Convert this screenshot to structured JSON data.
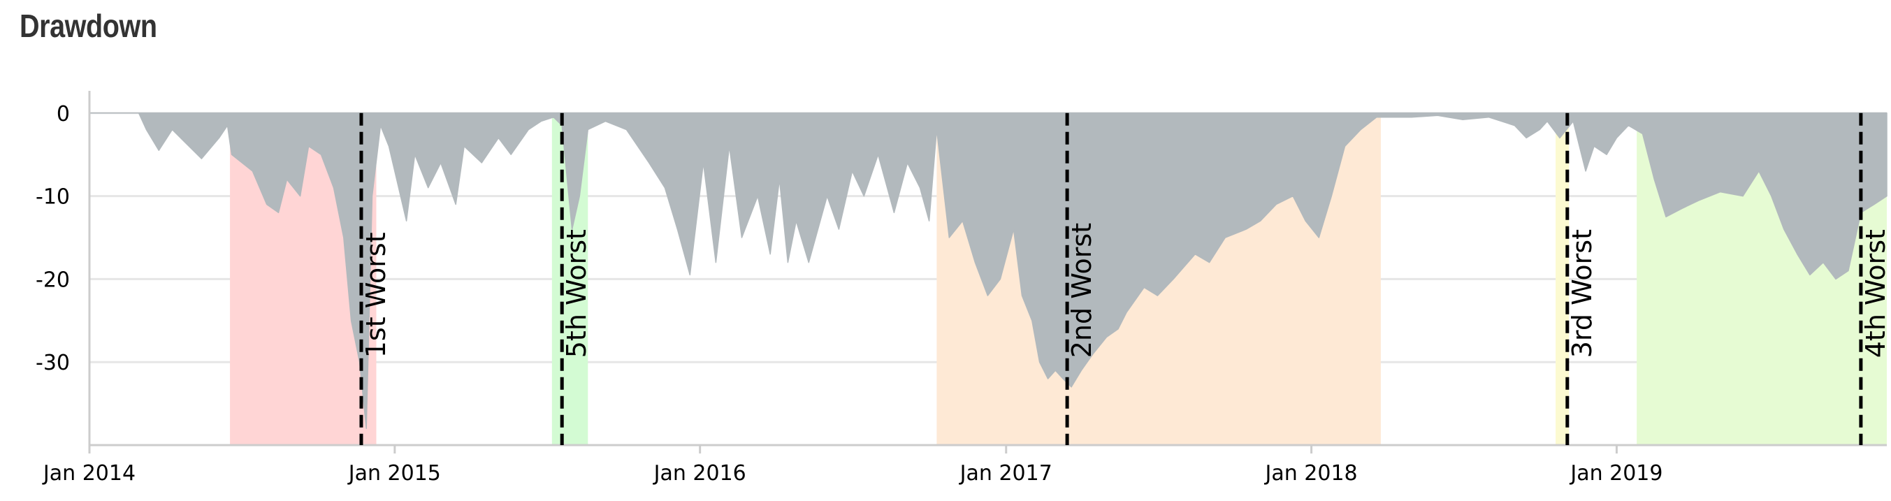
{
  "page": {
    "title": "Drawdown"
  },
  "chart_data": {
    "type": "area",
    "title": "Drawdown",
    "xlabel": "",
    "ylabel": "",
    "x_range": [
      "2014-01-01",
      "2019-11-20"
    ],
    "ylim": [
      -40,
      2
    ],
    "grid": {
      "y": true,
      "x": false
    },
    "y_ticks": [
      0,
      -10,
      -20,
      -30
    ],
    "y_tick_labels": [
      "0",
      "-10",
      "-20",
      "-30"
    ],
    "x_ticks": [
      "2014-01-01",
      "2015-01-01",
      "2016-01-01",
      "2017-01-01",
      "2018-01-01",
      "2019-01-01"
    ],
    "x_tick_labels": [
      "Jan 2014",
      "Jan 2015",
      "Jan 2016",
      "Jan 2017",
      "Jan 2018",
      "Jan 2019"
    ],
    "series": [
      {
        "color": "#b2b9bd",
        "points": [
          [
            "2014-01-01",
            0
          ],
          [
            "2014-03-01",
            0
          ],
          [
            "2014-03-10",
            -2
          ],
          [
            "2014-03-25",
            -4.5
          ],
          [
            "2014-04-10",
            -2
          ],
          [
            "2014-04-25",
            -3.5
          ],
          [
            "2014-05-15",
            -5.5
          ],
          [
            "2014-06-05",
            -3
          ],
          [
            "2014-06-15",
            -1.5
          ],
          [
            "2014-06-20",
            -5
          ],
          [
            "2014-07-15",
            -7
          ],
          [
            "2014-08-01",
            -11
          ],
          [
            "2014-08-15",
            -12
          ],
          [
            "2014-08-25",
            -8
          ],
          [
            "2014-09-10",
            -10
          ],
          [
            "2014-09-20",
            -4
          ],
          [
            "2014-10-05",
            -5
          ],
          [
            "2014-10-20",
            -9
          ],
          [
            "2014-11-01",
            -15
          ],
          [
            "2014-11-10",
            -25
          ],
          [
            "2014-11-20",
            -30
          ],
          [
            "2014-11-28",
            -38
          ],
          [
            "2014-12-05",
            -10
          ],
          [
            "2014-12-15",
            -1.5
          ],
          [
            "2014-12-25",
            -4
          ],
          [
            "2015-01-15",
            -13
          ],
          [
            "2015-01-25",
            -5
          ],
          [
            "2015-02-10",
            -9
          ],
          [
            "2015-02-25",
            -6
          ],
          [
            "2015-03-15",
            -11
          ],
          [
            "2015-03-25",
            -4
          ],
          [
            "2015-04-15",
            -6
          ],
          [
            "2015-05-05",
            -3
          ],
          [
            "2015-05-20",
            -5
          ],
          [
            "2015-06-10",
            -2
          ],
          [
            "2015-06-25",
            -1
          ],
          [
            "2015-07-10",
            -0.5
          ],
          [
            "2015-07-20",
            -1.5
          ],
          [
            "2015-08-01",
            -14
          ],
          [
            "2015-08-10",
            -10
          ],
          [
            "2015-08-20",
            -2
          ],
          [
            "2015-09-10",
            -1
          ],
          [
            "2015-10-05",
            -2
          ],
          [
            "2015-11-01",
            -6
          ],
          [
            "2015-11-20",
            -9
          ],
          [
            "2015-12-05",
            -14
          ],
          [
            "2015-12-20",
            -19.5
          ],
          [
            "2016-01-05",
            -6
          ],
          [
            "2016-01-20",
            -18
          ],
          [
            "2016-02-05",
            -4
          ],
          [
            "2016-02-20",
            -15
          ],
          [
            "2016-03-10",
            -10
          ],
          [
            "2016-03-25",
            -17
          ],
          [
            "2016-04-05",
            -8
          ],
          [
            "2016-04-15",
            -18
          ],
          [
            "2016-04-25",
            -13
          ],
          [
            "2016-05-10",
            -18
          ],
          [
            "2016-06-01",
            -10
          ],
          [
            "2016-06-15",
            -14
          ],
          [
            "2016-07-01",
            -7
          ],
          [
            "2016-07-15",
            -10
          ],
          [
            "2016-08-01",
            -5
          ],
          [
            "2016-08-20",
            -12
          ],
          [
            "2016-09-05",
            -6
          ],
          [
            "2016-09-20",
            -9
          ],
          [
            "2016-10-01",
            -13
          ],
          [
            "2016-10-10",
            -2
          ],
          [
            "2016-10-25",
            -15
          ],
          [
            "2016-11-10",
            -13
          ],
          [
            "2016-11-25",
            -18
          ],
          [
            "2016-12-10",
            -22
          ],
          [
            "2016-12-25",
            -20
          ],
          [
            "2017-01-10",
            -14
          ],
          [
            "2017-01-20",
            -22
          ],
          [
            "2017-02-01",
            -25
          ],
          [
            "2017-02-10",
            -30
          ],
          [
            "2017-02-20",
            -32
          ],
          [
            "2017-03-01",
            -31
          ],
          [
            "2017-03-10",
            -32
          ],
          [
            "2017-03-20",
            -33
          ],
          [
            "2017-04-01",
            -31
          ],
          [
            "2017-04-15",
            -29
          ],
          [
            "2017-05-01",
            -27
          ],
          [
            "2017-05-15",
            -26
          ],
          [
            "2017-05-25",
            -24
          ],
          [
            "2017-06-15",
            -21
          ],
          [
            "2017-07-01",
            -22
          ],
          [
            "2017-07-20",
            -20
          ],
          [
            "2017-08-15",
            -17
          ],
          [
            "2017-09-01",
            -18
          ],
          [
            "2017-09-20",
            -15
          ],
          [
            "2017-10-15",
            -14
          ],
          [
            "2017-11-01",
            -13
          ],
          [
            "2017-11-20",
            -11
          ],
          [
            "2017-12-10",
            -10
          ],
          [
            "2017-12-25",
            -13
          ],
          [
            "2018-01-10",
            -15
          ],
          [
            "2018-01-25",
            -10
          ],
          [
            "2018-02-10",
            -4
          ],
          [
            "2018-03-01",
            -2
          ],
          [
            "2018-03-20",
            -0.5
          ],
          [
            "2018-05-01",
            -0.5
          ],
          [
            "2018-06-01",
            -0.3
          ],
          [
            "2018-07-01",
            -0.8
          ],
          [
            "2018-08-01",
            -0.5
          ],
          [
            "2018-09-01",
            -1.5
          ],
          [
            "2018-09-15",
            -3
          ],
          [
            "2018-10-01",
            -2
          ],
          [
            "2018-10-10",
            -1
          ],
          [
            "2018-10-25",
            -3
          ],
          [
            "2018-11-10",
            -1
          ],
          [
            "2018-11-25",
            -7
          ],
          [
            "2018-12-05",
            -4
          ],
          [
            "2018-12-20",
            -5
          ],
          [
            "2019-01-01",
            -3
          ],
          [
            "2019-01-15",
            -1.5
          ],
          [
            "2019-02-01",
            -2.5
          ],
          [
            "2019-02-15",
            -8
          ],
          [
            "2019-03-01",
            -12.5
          ],
          [
            "2019-03-20",
            -11.5
          ],
          [
            "2019-04-10",
            -10.5
          ],
          [
            "2019-05-05",
            -9.5
          ],
          [
            "2019-06-01",
            -10
          ],
          [
            "2019-06-20",
            -7
          ],
          [
            "2019-07-05",
            -10
          ],
          [
            "2019-07-20",
            -14
          ],
          [
            "2019-08-05",
            -17
          ],
          [
            "2019-08-20",
            -19.5
          ],
          [
            "2019-09-05",
            -18
          ],
          [
            "2019-09-20",
            -20
          ],
          [
            "2019-10-05",
            -19
          ],
          [
            "2019-10-20",
            -12
          ],
          [
            "2019-11-05",
            -11
          ],
          [
            "2019-11-20",
            -10
          ]
        ]
      }
    ],
    "periods": [
      {
        "label": "1st Worst",
        "start": "2014-06-18",
        "end": "2014-12-10",
        "trough": "2014-11-22",
        "color": "#ffd5d5"
      },
      {
        "label": "5th Worst",
        "start": "2015-07-08",
        "end": "2015-08-20",
        "trough": "2015-07-20",
        "color": "#d3fbd3"
      },
      {
        "label": "2nd Worst",
        "start": "2016-10-10",
        "end": "2018-03-25",
        "trough": "2017-03-15",
        "color": "#fee9d5"
      },
      {
        "label": "3rd Worst",
        "start": "2018-10-20",
        "end": "2018-11-05",
        "trough": "2018-11-03",
        "color": "#fcfad1"
      },
      {
        "label": "4th Worst",
        "start": "2019-01-25",
        "end": "2019-11-20",
        "trough": "2019-10-20",
        "color": "#e6fbd3"
      }
    ]
  }
}
